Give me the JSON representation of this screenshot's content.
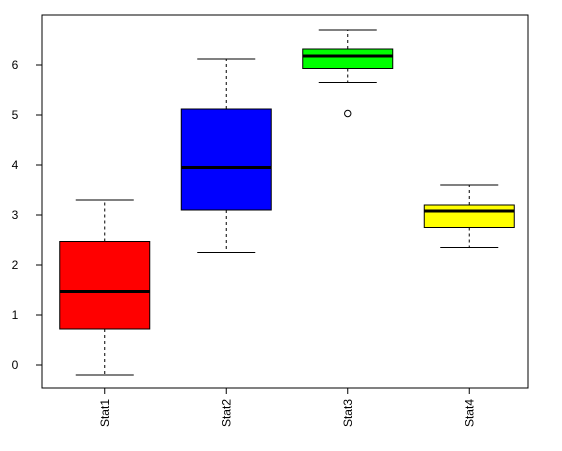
{
  "chart_data": {
    "type": "boxplot",
    "title": "",
    "xlabel": "",
    "ylabel": "",
    "ylim": [
      -0.5,
      7.0
    ],
    "y_ticks": [
      0,
      1,
      2,
      3,
      4,
      5,
      6
    ],
    "grid": false,
    "categories": [
      "Stat1",
      "Stat2",
      "Stat3",
      "Stat4"
    ],
    "boxes": [
      {
        "category": "Stat1",
        "color": "#ff0000",
        "whisker_low": -0.2,
        "q1": 0.72,
        "median": 1.47,
        "q3": 2.47,
        "whisker_high": 3.3,
        "outliers": []
      },
      {
        "category": "Stat2",
        "color": "#0000ff",
        "whisker_low": 2.25,
        "q1": 3.1,
        "median": 3.95,
        "q3": 5.12,
        "whisker_high": 6.12,
        "outliers": []
      },
      {
        "category": "Stat3",
        "color": "#00ff00",
        "whisker_low": 5.65,
        "q1": 5.93,
        "median": 6.18,
        "q3": 6.32,
        "whisker_high": 6.7,
        "outliers": [
          5.03
        ]
      },
      {
        "category": "Stat4",
        "color": "#ffff00",
        "whisker_low": 2.35,
        "q1": 2.75,
        "median": 3.08,
        "q3": 3.2,
        "whisker_high": 3.6,
        "outliers": []
      }
    ]
  }
}
